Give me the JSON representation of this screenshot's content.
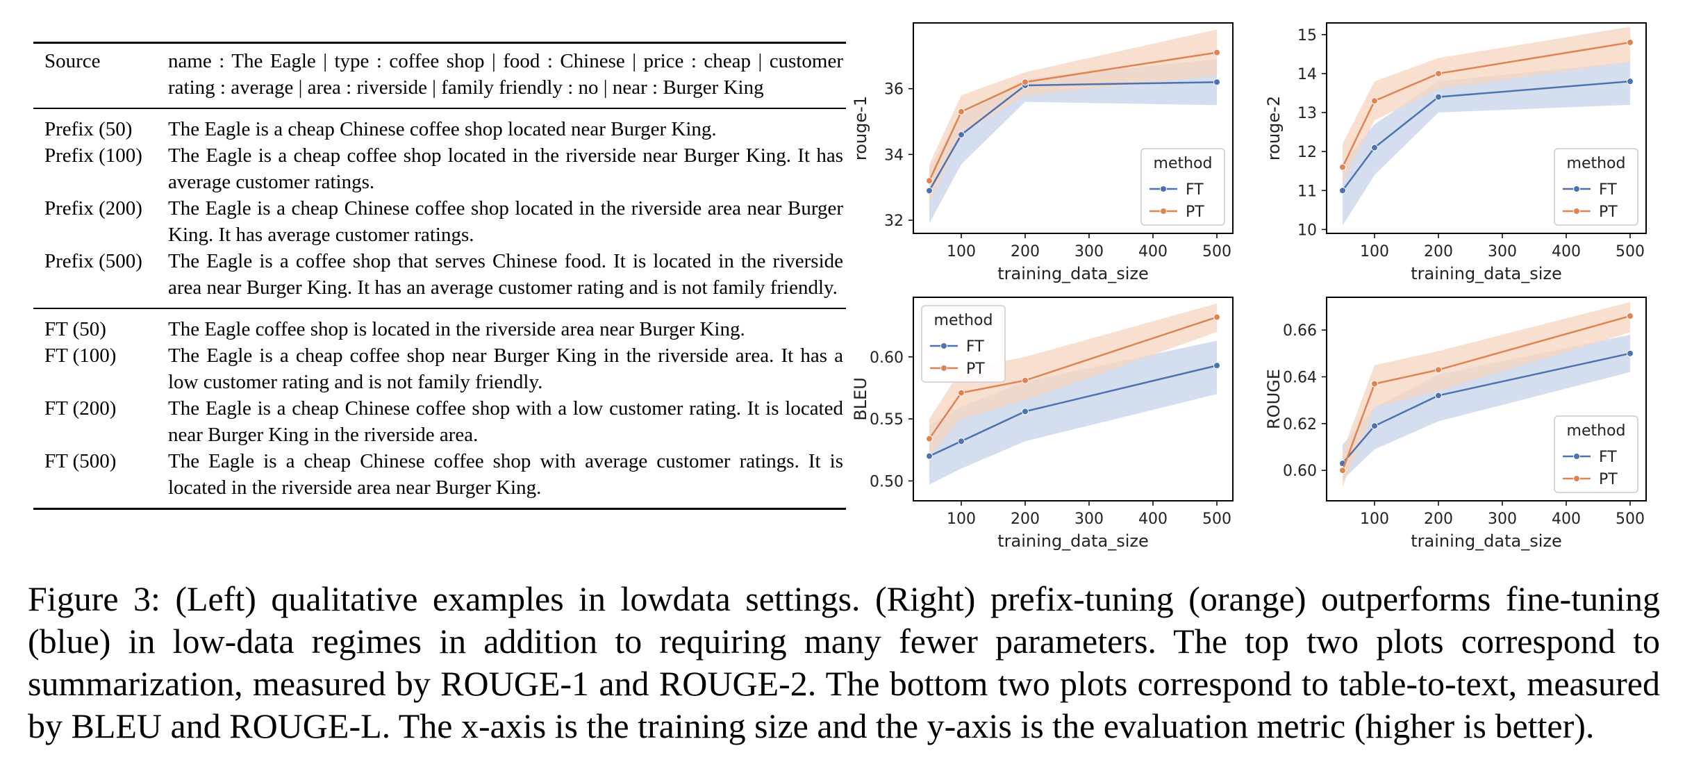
{
  "table": {
    "source": {
      "label": "Source",
      "text": "name : The Eagle | type : coffee shop | food : Chinese | price : cheap | customer rating : average | area : riverside | family friendly : no | near : Burger King"
    },
    "prefix_rows": [
      {
        "label": "Prefix (50)",
        "text": "The Eagle is a cheap Chinese coffee shop located near Burger King."
      },
      {
        "label": "Prefix (100)",
        "text": "The Eagle is a cheap coffee shop located in the riverside near Burger King. It has average customer ratings."
      },
      {
        "label": "Prefix (200)",
        "text": "The Eagle is a cheap Chinese coffee shop located in the riverside area near Burger King. It has average customer ratings."
      },
      {
        "label": "Prefix (500)",
        "text": "The Eagle is a coffee shop that serves Chinese food. It is located in the riverside area near Burger King. It has an average customer rating and is not family friendly."
      }
    ],
    "ft_rows": [
      {
        "label": "FT (50)",
        "text": "The Eagle coffee shop is located in the riverside area near Burger King."
      },
      {
        "label": "FT (100)",
        "text": "The Eagle is a cheap coffee shop near Burger King in the riverside area. It has a low customer rating and is not family friendly."
      },
      {
        "label": "FT (200)",
        "text": "The Eagle is a cheap Chinese coffee shop with a low customer rating. It is located near Burger King in the riverside area."
      },
      {
        "label": "FT (500)",
        "text": "The Eagle is a cheap Chinese coffee shop with average customer ratings. It is located in the riverside area near Burger King."
      }
    ]
  },
  "colors": {
    "FT": "#4c72b0",
    "PT": "#dd8452",
    "FT_band": "#c6d3ea",
    "PT_band": "#f7d4bf"
  },
  "chart_data": [
    {
      "type": "line",
      "xlabel": "training_data_size",
      "ylabel": "rouge-1",
      "xlim": [
        25,
        525
      ],
      "ylim": [
        31.6,
        38.0
      ],
      "xticks": [
        100,
        200,
        300,
        400,
        500
      ],
      "yticks": [
        32,
        34,
        36
      ],
      "legend_title": "method",
      "legend_position": "bottom-right",
      "x": [
        50,
        100,
        200,
        500
      ],
      "series": [
        {
          "name": "FT",
          "values": [
            32.9,
            34.6,
            36.1,
            36.2
          ],
          "lower": [
            31.9,
            33.7,
            35.6,
            35.5
          ],
          "upper": [
            33.6,
            35.2,
            36.3,
            36.9
          ]
        },
        {
          "name": "PT",
          "values": [
            33.2,
            35.3,
            36.2,
            37.1
          ],
          "lower": [
            32.5,
            34.6,
            35.8,
            36.4
          ],
          "upper": [
            33.7,
            35.8,
            36.5,
            37.8
          ]
        }
      ]
    },
    {
      "type": "line",
      "xlabel": "training_data_size",
      "ylabel": "rouge-2",
      "xlim": [
        25,
        525
      ],
      "ylim": [
        9.9,
        15.3
      ],
      "xticks": [
        100,
        200,
        300,
        400,
        500
      ],
      "yticks": [
        10,
        11,
        12,
        13,
        14,
        15
      ],
      "legend_title": "method",
      "legend_position": "bottom-right",
      "x": [
        50,
        100,
        200,
        500
      ],
      "series": [
        {
          "name": "FT",
          "values": [
            11.0,
            12.1,
            13.4,
            13.8
          ],
          "lower": [
            10.1,
            11.4,
            13.0,
            13.2
          ],
          "upper": [
            11.7,
            12.7,
            13.8,
            14.3
          ]
        },
        {
          "name": "PT",
          "values": [
            11.6,
            13.3,
            14.0,
            14.8
          ],
          "lower": [
            11.2,
            12.8,
            13.6,
            14.3
          ],
          "upper": [
            12.2,
            13.8,
            14.4,
            15.2
          ]
        }
      ]
    },
    {
      "type": "line",
      "xlabel": "training_data_size",
      "ylabel": "BLEU",
      "xlim": [
        25,
        525
      ],
      "ylim": [
        0.484,
        0.648
      ],
      "xticks": [
        100,
        200,
        300,
        400,
        500
      ],
      "yticks": [
        0.5,
        0.55,
        0.6
      ],
      "ytick_labels": [
        "0.50",
        "0.55",
        "0.60"
      ],
      "legend_title": "method",
      "legend_position": "top-left",
      "x": [
        50,
        100,
        200,
        500
      ],
      "series": [
        {
          "name": "FT",
          "values": [
            0.52,
            0.532,
            0.556,
            0.593
          ],
          "lower": [
            0.497,
            0.51,
            0.532,
            0.57
          ],
          "upper": [
            0.545,
            0.56,
            0.58,
            0.613
          ]
        },
        {
          "name": "PT",
          "values": [
            0.534,
            0.571,
            0.581,
            0.632
          ],
          "lower": [
            0.52,
            0.55,
            0.565,
            0.62
          ],
          "upper": [
            0.55,
            0.59,
            0.6,
            0.643
          ]
        }
      ]
    },
    {
      "type": "line",
      "xlabel": "training_data_size",
      "ylabel": "ROUGE",
      "xlim": [
        25,
        525
      ],
      "ylim": [
        0.587,
        0.674
      ],
      "xticks": [
        100,
        200,
        300,
        400,
        500
      ],
      "yticks": [
        0.6,
        0.62,
        0.64,
        0.66
      ],
      "ytick_labels": [
        "0.60",
        "0.62",
        "0.64",
        "0.66"
      ],
      "legend_title": "method",
      "legend_position": "bottom-right",
      "x": [
        50,
        100,
        200,
        500
      ],
      "series": [
        {
          "name": "FT",
          "values": [
            0.603,
            0.619,
            0.632,
            0.65
          ],
          "lower": [
            0.596,
            0.609,
            0.621,
            0.642
          ],
          "upper": [
            0.611,
            0.627,
            0.641,
            0.658
          ]
        },
        {
          "name": "PT",
          "values": [
            0.6,
            0.637,
            0.643,
            0.666
          ],
          "lower": [
            0.593,
            0.627,
            0.634,
            0.659
          ],
          "upper": [
            0.608,
            0.645,
            0.651,
            0.672
          ]
        }
      ]
    }
  ],
  "caption": "Figure 3: (Left) qualitative examples in lowdata settings. (Right) prefix-tuning (orange) outperforms fine-tuning (blue) in low-data regimes in addition to requiring many fewer parameters. The top two plots correspond to summarization, measured by ROUGE-1 and ROUGE-2. The bottom two plots correspond to table-to-text, measured by BLEU and ROUGE-L. The x-axis is the training size and the y-axis is the evaluation metric (higher is better)."
}
